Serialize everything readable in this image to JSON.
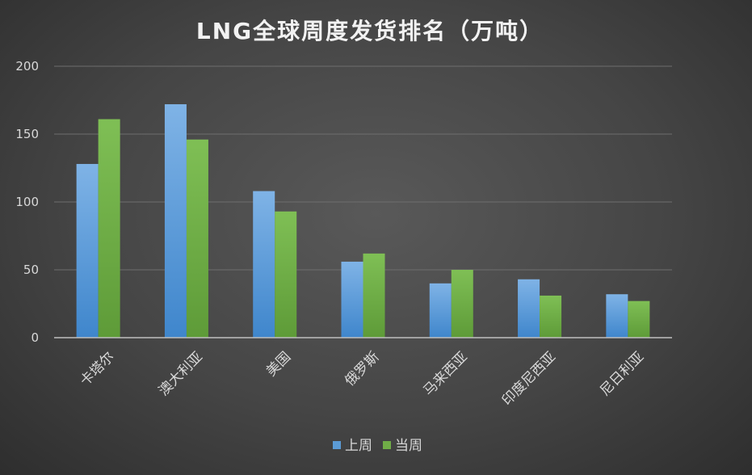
{
  "chart_data": {
    "type": "bar",
    "title": "LNG全球周度发货排名（万吨）",
    "categories": [
      "卡塔尔",
      "澳大利亚",
      "美国",
      "俄罗斯",
      "马来西亚",
      "印度尼西亚",
      "尼日利亚"
    ],
    "series": [
      {
        "name": "上周",
        "values": [
          128,
          172,
          108,
          56,
          40,
          43,
          32
        ],
        "color": "#5b9bd5"
      },
      {
        "name": "当周",
        "values": [
          161,
          146,
          93,
          62,
          50,
          31,
          27
        ],
        "color": "#70ad47"
      }
    ],
    "ylim": [
      0,
      200
    ],
    "yticks": [
      0,
      50,
      100,
      150,
      200
    ],
    "grid": true,
    "legend_position": "bottom"
  }
}
